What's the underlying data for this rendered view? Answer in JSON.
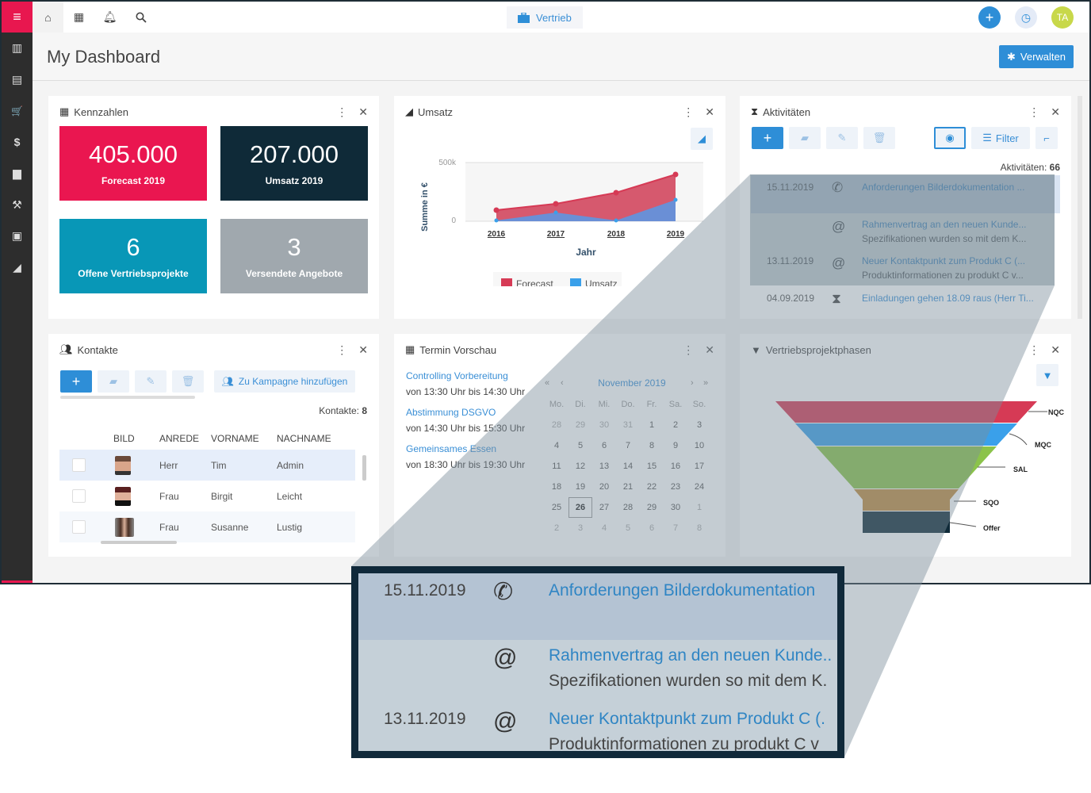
{
  "sidebar": {
    "menu_icon": "hamburger-icon",
    "items": [
      {
        "icon": "dashboard-chart-icon",
        "glyph": "▥"
      },
      {
        "icon": "contract-icon",
        "glyph": "▤"
      },
      {
        "icon": "cart-icon",
        "glyph": "🛒"
      },
      {
        "icon": "dollar-icon",
        "glyph": "$"
      },
      {
        "icon": "document-icon",
        "glyph": "▆"
      },
      {
        "icon": "hammer-icon",
        "glyph": "⚒"
      },
      {
        "icon": "money-icon",
        "glyph": "▣"
      },
      {
        "icon": "area-chart-icon",
        "glyph": "◢"
      }
    ]
  },
  "topbar": {
    "context_label": "Vertrieb",
    "user_initials": "TA",
    "colors": {
      "add": "#2e8ed7",
      "history_bg": "#e4ebf7",
      "avatar": "#c8d84a"
    }
  },
  "header": {
    "title": "My Dashboard",
    "manage_label": "Verwalten"
  },
  "kennzahlen": {
    "title": "Kennzahlen",
    "tiles": [
      {
        "value": "405.000",
        "label": "Forecast 2019",
        "color": "#ea1650"
      },
      {
        "value": "207.000",
        "label": "Umsatz 2019",
        "color": "#0f2a38"
      },
      {
        "value": "6",
        "label": "Offene Vertriebsprojekte",
        "color": "#0897b7"
      },
      {
        "value": "3",
        "label": "Versendete Angebote",
        "color": "#a0a8ae"
      }
    ]
  },
  "umsatz": {
    "title": "Umsatz",
    "ylabel": "Summe in €",
    "xlabel": "Jahr",
    "yticks": [
      "500k",
      "0"
    ],
    "categories": [
      "2016",
      "2017",
      "2018",
      "2019"
    ],
    "legend": [
      {
        "name": "Forecast",
        "color": "#d63a55"
      },
      {
        "name": "Umsatz",
        "color": "#3aa0ea"
      }
    ]
  },
  "chart_data": {
    "type": "area",
    "title": "Umsatz",
    "xlabel": "Jahr",
    "ylabel": "Summe in €",
    "categories": [
      "2016",
      "2017",
      "2018",
      "2019"
    ],
    "series": [
      {
        "name": "Forecast",
        "values": [
          100000,
          150000,
          250000,
          405000
        ]
      },
      {
        "name": "Umsatz",
        "values": [
          0,
          70000,
          0,
          207000
        ]
      }
    ],
    "ylim": [
      0,
      500000
    ],
    "yticks": [
      "0",
      "500k"
    ],
    "legend_position": "bottom"
  },
  "aktivitaeten": {
    "title": "Aktivitäten",
    "filter_label": "Filter",
    "count_label": "Aktivitäten:",
    "count": "66",
    "rows": [
      {
        "date": "15.11.2019",
        "icon": "phone-icon",
        "glyph": "✆",
        "title": "Anforderungen Bilderdokumentation ...",
        "sub": ""
      },
      {
        "date": "",
        "icon": "at-icon",
        "glyph": "@",
        "title": "Rahmenvertrag an den neuen Kunde...",
        "sub": "Spezifikationen wurden so mit dem K..."
      },
      {
        "date": "13.11.2019",
        "icon": "at-icon",
        "glyph": "@",
        "title": "Neuer Kontaktpunkt zum Produkt C (...",
        "sub": "Produktinformationen zu produkt C v..."
      },
      {
        "date": "04.09.2019",
        "icon": "hourglass-icon",
        "glyph": "⧗",
        "title": "Einladungen gehen 18.09 raus (Herr Ti...",
        "sub": ""
      }
    ]
  },
  "kontakte": {
    "title": "Kontakte",
    "campaign_label": "Zu Kampagne hinzufügen",
    "count_label": "Kontakte:",
    "count": "8",
    "columns": [
      "BILD",
      "ANREDE",
      "VORNAME",
      "NACHNAME"
    ],
    "rows": [
      {
        "anrede": "Herr",
        "vorname": "Tim",
        "nachname": "Admin"
      },
      {
        "anrede": "Frau",
        "vorname": "Birgit",
        "nachname": "Leicht"
      },
      {
        "anrede": "Frau",
        "vorname": "Susanne",
        "nachname": "Lustig"
      }
    ]
  },
  "termine": {
    "title": "Termin Vorschau",
    "events": [
      {
        "title": "Controlling Vorbereitung",
        "time": "von 13:30 Uhr bis 14:30 Uhr"
      },
      {
        "title": "Abstimmung DSGVO",
        "time": "von 14:30 Uhr bis 15:30 Uhr"
      },
      {
        "title": "Gemeinsames Essen",
        "time": "von 18:30 Uhr bis 19:30 Uhr"
      }
    ],
    "calendar": {
      "month": "November 2019",
      "weekdays": [
        "Mo.",
        "Di.",
        "Mi.",
        "Do.",
        "Fr.",
        "Sa.",
        "So."
      ],
      "days": [
        "28",
        "29",
        "30",
        "31",
        "1",
        "2",
        "3",
        "4",
        "5",
        "6",
        "7",
        "8",
        "9",
        "10",
        "11",
        "12",
        "13",
        "14",
        "15",
        "16",
        "17",
        "18",
        "19",
        "20",
        "21",
        "22",
        "23",
        "24",
        "25",
        "26",
        "27",
        "28",
        "29",
        "30",
        "1",
        "2",
        "3",
        "4",
        "5",
        "6",
        "7",
        "8"
      ],
      "today": "26"
    }
  },
  "phasen": {
    "title": "Vertriebsprojektphasen",
    "stages": [
      {
        "label": "NQC",
        "color": "#d63a55"
      },
      {
        "label": "MQC",
        "color": "#3aa0ea"
      },
      {
        "label": "SAL",
        "color": "#8bc34a"
      },
      {
        "label": "SQO",
        "color": "#c08a3e"
      },
      {
        "label": "Offer",
        "color": "#0f2a38"
      }
    ]
  },
  "magnifier": {
    "rows": [
      {
        "date": "15.11.2019",
        "glyph": "✆",
        "title": "Anforderungen Bilderdokumentation",
        "sub": ""
      },
      {
        "date": "",
        "glyph": "@",
        "title": "Rahmenvertrag an den neuen Kunde..",
        "sub": "Spezifikationen wurden so mit dem K."
      },
      {
        "date": "13.11.2019",
        "glyph": "@",
        "title": "Neuer Kontaktpunkt zum Produkt C (.",
        "sub": "Produktinformationen zu produkt C v"
      }
    ]
  }
}
